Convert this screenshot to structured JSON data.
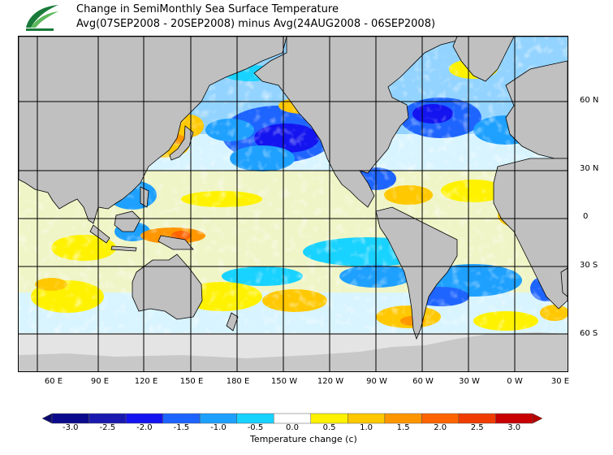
{
  "title": {
    "line1": "Change in SemiMonthly Sea Surface Temperature",
    "line2": "Avg(07SEP2008 - 20SEP2008) minus Avg(24AUG2008 - 06SEP2008)"
  },
  "map": {
    "projection": "Pacific-centered equirectangular world",
    "lon_labels": [
      "60 E",
      "90 E",
      "120 E",
      "150 E",
      "180 E",
      "150 W",
      "120 W",
      "90 W",
      "60 W",
      "30 W",
      "0 W",
      "30 E"
    ],
    "lat_labels": [
      "60 N",
      "30 N",
      "0",
      "30 S",
      "60 S"
    ],
    "colors": {
      "land": "#c0c0c0",
      "ice": "#e4e4e4",
      "grid": "#000000"
    }
  },
  "legend": {
    "title": "Temperature change  (c)",
    "ticks": [
      "-3.0",
      "-2.5",
      "-2.0",
      "-1.5",
      "-1.0",
      "-0.5",
      "0.0",
      "0.5",
      "1.0",
      "1.5",
      "2.0",
      "2.5",
      "3.0"
    ],
    "colors": [
      "#0c0a8c",
      "#1a1ab0",
      "#1414f0",
      "#1e64ff",
      "#1ea0ff",
      "#18d2ff",
      "#ffffff",
      "#fff200",
      "#ffc800",
      "#ff9600",
      "#ff6400",
      "#f03c00",
      "#c80000"
    ],
    "under_color": "#0a0a6e",
    "over_color": "#b40000"
  }
}
